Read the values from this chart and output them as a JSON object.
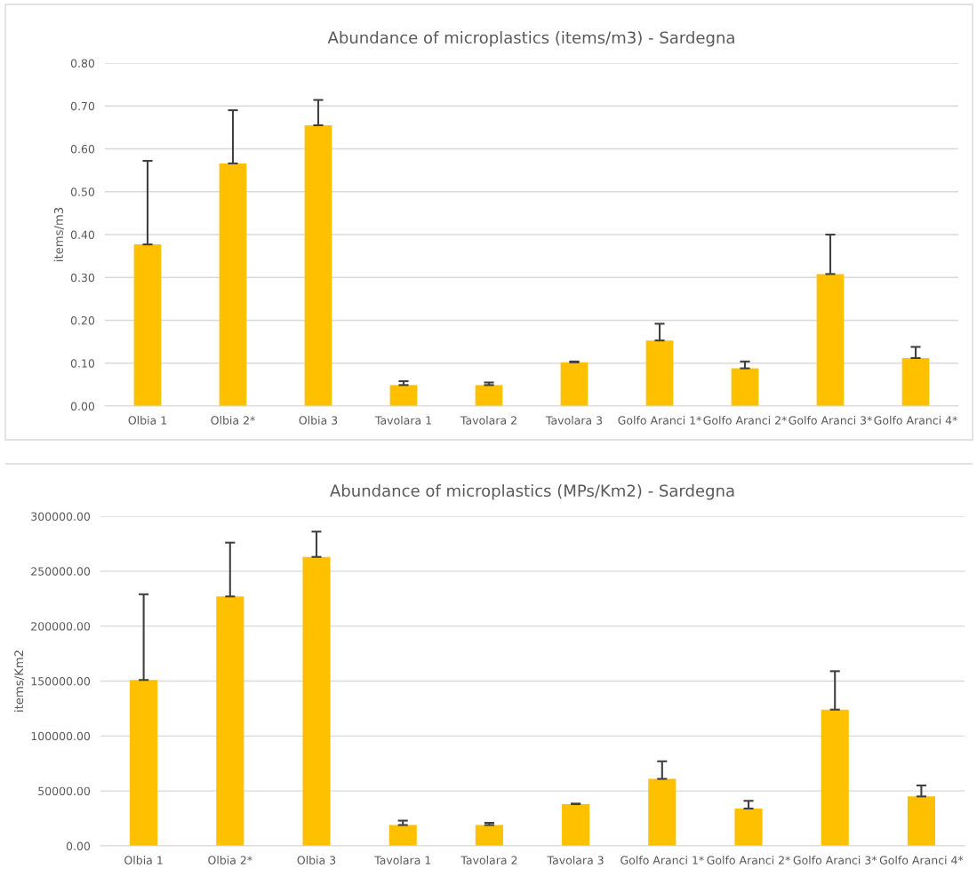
{
  "chart_data": [
    {
      "type": "bar",
      "title": "Abundance of microplastics (items/m3) - Sardegna",
      "ylabel": "items/m3",
      "categories": [
        "Olbia 1",
        "Olbia 2*",
        "Olbia 3",
        "Tavolara 1",
        "Tavolara 2",
        "Tavolara 3",
        "Golfo Aranci 1*",
        "Golfo Aranci 2*",
        "Golfo Aranci 3*",
        "Golfo Aranci 4*"
      ],
      "values": [
        0.377,
        0.566,
        0.655,
        0.049,
        0.049,
        0.102,
        0.153,
        0.088,
        0.308,
        0.112
      ],
      "errors": [
        [
          0.377,
          0.572
        ],
        [
          0.566,
          0.69
        ],
        [
          0.655,
          0.714
        ],
        [
          0.049,
          0.058
        ],
        [
          0.049,
          0.055
        ],
        [
          0.102,
          0.104
        ],
        [
          0.153,
          0.192
        ],
        [
          0.088,
          0.104
        ],
        [
          0.308,
          0.4
        ],
        [
          0.112,
          0.138
        ]
      ],
      "color": "#ffc000",
      "ylim": [
        0,
        0.8
      ],
      "yticks": [
        {
          "value": 0,
          "label": "0.00"
        },
        {
          "value": 0.1,
          "label": "0.10"
        },
        {
          "value": 0.2,
          "label": "0.20"
        },
        {
          "value": 0.3,
          "label": "0.30"
        },
        {
          "value": 0.4,
          "label": "0.40"
        },
        {
          "value": 0.5,
          "label": "0.50"
        },
        {
          "value": 0.6,
          "label": "0.60"
        },
        {
          "value": 0.7,
          "label": "0.70"
        },
        {
          "value": 0.8,
          "label": "0.80"
        }
      ],
      "grid": "y"
    },
    {
      "type": "bar",
      "title": "Abundance of microplastics (MPs/Km2) - Sardegna",
      "ylabel": "items/Km2",
      "categories": [
        "Olbia 1",
        "Olbia 2*",
        "Olbia 3",
        "Tavolara 1",
        "Tavolara 2",
        "Tavolara 3",
        "Golfo Aranci 1*",
        "Golfo Aranci 2*",
        "Golfo Aranci 3*",
        "Golfo Aranci 4*"
      ],
      "values": [
        151000,
        227000,
        263000,
        19000,
        19000,
        38000,
        61000,
        34000,
        124000,
        45000
      ],
      "errors": [
        [
          151000,
          229000
        ],
        [
          227000,
          276000
        ],
        [
          263000,
          286000
        ],
        [
          19000,
          23000
        ],
        [
          19000,
          21000
        ],
        [
          38000,
          38500
        ],
        [
          61000,
          77000
        ],
        [
          34000,
          41000
        ],
        [
          124000,
          159000
        ],
        [
          45000,
          55000
        ]
      ],
      "color": "#ffc000",
      "ylim": [
        0,
        300000
      ],
      "yticks": [
        {
          "value": 0,
          "label": "0.00"
        },
        {
          "value": 50000,
          "label": "50000.00"
        },
        {
          "value": 100000,
          "label": "100000.00"
        },
        {
          "value": 150000,
          "label": "150000.00"
        },
        {
          "value": 200000,
          "label": "200000.00"
        },
        {
          "value": 250000,
          "label": "250000.00"
        },
        {
          "value": 300000,
          "label": "300000.00"
        }
      ],
      "grid": "y"
    }
  ]
}
